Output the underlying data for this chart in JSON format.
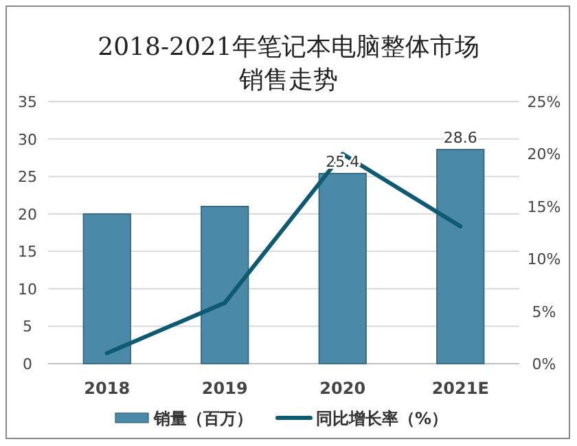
{
  "chart_data": {
    "type": "bar",
    "title": "2018-2021年笔记本电脑整体市场销售走势",
    "categories": [
      "2018",
      "2019",
      "2020",
      "2021E"
    ],
    "series": [
      {
        "name": "销量（百万）",
        "color": "#4a8aa8",
        "values": [
          20,
          21,
          25.4,
          28.6
        ],
        "value_labels": [
          null,
          null,
          "25.4",
          "28.6"
        ]
      },
      {
        "name": "同比增长率（%）",
        "type": "line",
        "axis": "y2",
        "color": "#0e5a73",
        "values": [
          1,
          5.8,
          20,
          13.1
        ]
      }
    ],
    "ylim": [
      0,
      35
    ],
    "yticks": [
      0,
      5,
      10,
      15,
      20,
      25,
      30,
      35
    ],
    "y2lim": [
      0,
      25
    ],
    "y2ticks": [
      {
        "value": 0,
        "label": "0%"
      },
      {
        "value": 5,
        "label": "5%"
      },
      {
        "value": 10,
        "label": "10%"
      },
      {
        "value": 15,
        "label": "15%"
      },
      {
        "value": 20,
        "label": "20%"
      },
      {
        "value": 25,
        "label": "25%"
      }
    ],
    "grid": "y",
    "legend": "bottom",
    "marker": "none",
    "line_style": "solid"
  }
}
